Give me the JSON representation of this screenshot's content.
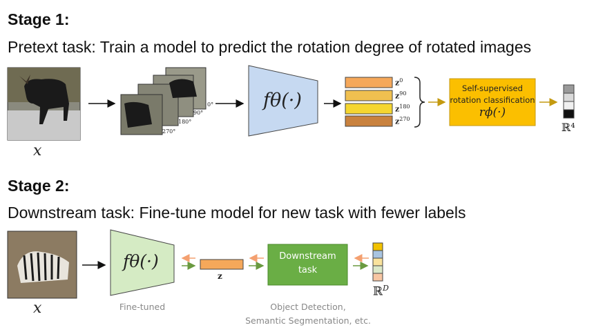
{
  "stage1": {
    "title": "Stage 1:",
    "subtitle": "Pretext task: Train a model to predict the rotation degree of rotated images",
    "input_label": "x",
    "rotations": [
      "0°",
      "90°",
      "180°",
      "270°"
    ],
    "encoder_label": "fθ(·)",
    "features": [
      {
        "label": "z",
        "sup": "0",
        "color": "#f5a85a"
      },
      {
        "label": "z",
        "sup": "90",
        "color": "#f0c050"
      },
      {
        "label": "z",
        "sup": "180",
        "color": "#f5d630"
      },
      {
        "label": "z",
        "sup": "270",
        "color": "#c9823e"
      }
    ],
    "classifier_line1": "Self-supervised",
    "classifier_line2": "rotation classification",
    "classifier_func": "rϕ(·)",
    "output_space": "ℝ⁴"
  },
  "stage2": {
    "title": "Stage 2:",
    "subtitle": "Downstream task: Fine-tune model for new task with fewer labels",
    "input_label": "x",
    "encoder_label": "fθ(·)",
    "encoder_caption": "Fine-tuned",
    "feature_label": "z",
    "downstream_line1": "Downstream",
    "downstream_line2": "task",
    "downstream_caption_line1": "Object Detection,",
    "downstream_caption_line2": "Semantic Segmentation, etc.",
    "output_space": "ℝ",
    "output_space_sup": "D"
  },
  "colors": {
    "encoder1": "#c6d9f1",
    "encoder2": "#d5ebc4",
    "classifier": "#fbbf00",
    "downstream": "#6aae45",
    "feature": "#f5a85a",
    "back_arrow": "#f4a070",
    "forward_arrow": "#6a9a40",
    "gold_arrow": "#c49a10"
  }
}
